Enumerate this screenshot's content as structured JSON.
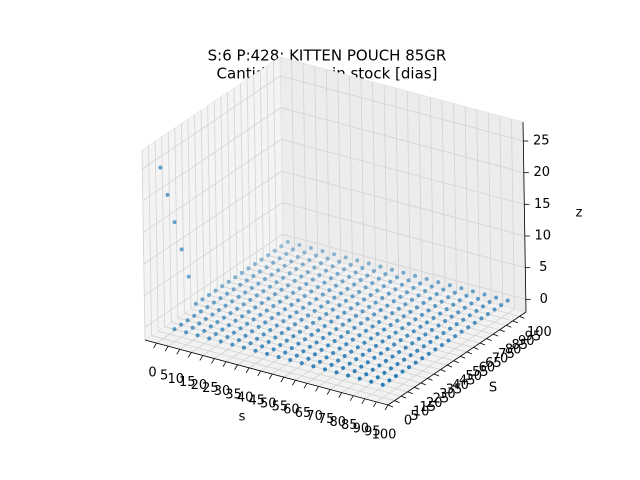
{
  "chart_data": {
    "type": "scatter3d",
    "title": "S:6 P:428: KITTEN POUCH 85GR",
    "subtitle": "Cantidad dias sin stock [dias]",
    "xlabel": "s",
    "ylabel": "S",
    "zlabel": "z",
    "color": "#1f77b4",
    "x": [
      0,
      5,
      10,
      15,
      20,
      25,
      30,
      35,
      40,
      45,
      50,
      55,
      60,
      65,
      70,
      75,
      80,
      85,
      90,
      95
    ],
    "y": [
      5,
      10,
      15,
      20,
      25,
      30,
      35,
      40,
      45,
      50,
      55,
      60,
      65,
      70,
      75,
      80,
      85,
      90,
      95,
      100
    ],
    "z": [
      [
        25,
        0,
        0,
        0,
        0,
        0,
        0,
        0,
        0,
        0,
        0,
        0,
        0,
        0,
        0,
        0,
        0,
        0,
        0,
        0
      ],
      [
        20,
        0,
        0,
        0,
        0,
        0,
        0,
        0,
        0,
        0,
        0,
        0,
        0,
        0,
        0,
        0,
        0,
        0,
        0,
        0
      ],
      [
        15,
        0,
        0,
        0,
        0,
        0,
        0,
        0,
        0,
        0,
        0,
        0,
        0,
        0,
        0,
        0,
        0,
        0,
        0,
        0
      ],
      [
        10,
        0,
        0,
        0,
        0,
        0,
        0,
        0,
        0,
        0,
        0,
        0,
        0,
        0,
        0,
        0,
        0,
        0,
        0,
        0
      ],
      [
        5,
        0,
        0,
        0,
        0,
        0,
        0,
        0,
        0,
        0,
        0,
        0,
        0,
        0,
        0,
        0,
        0,
        0,
        0,
        0
      ],
      [
        0,
        0,
        0,
        0,
        0,
        0,
        0,
        0,
        0,
        0,
        0,
        0,
        0,
        0,
        0,
        0,
        0,
        0,
        0,
        0
      ],
      [
        0,
        0,
        0,
        0,
        0,
        0,
        0,
        0,
        0,
        0,
        0,
        0,
        0,
        0,
        0,
        0,
        0,
        0,
        0,
        0
      ],
      [
        0,
        0,
        0,
        0,
        0,
        0,
        0,
        0,
        0,
        0,
        0,
        0,
        0,
        0,
        0,
        0,
        0,
        0,
        0,
        0
      ],
      [
        0,
        0,
        0,
        0,
        0,
        0,
        0,
        0,
        0,
        0,
        0,
        0,
        0,
        0,
        0,
        0,
        0,
        0,
        0,
        0
      ],
      [
        0,
        0,
        0,
        0,
        0,
        0,
        0,
        0,
        0,
        0,
        0,
        0,
        0,
        0,
        0,
        0,
        0,
        0,
        0,
        0
      ],
      [
        0,
        0,
        0,
        0,
        0,
        0,
        0,
        0,
        0,
        0,
        0,
        0,
        0,
        0,
        0,
        0,
        0,
        0,
        0,
        0
      ],
      [
        0,
        0,
        0,
        0,
        0,
        0,
        0,
        0,
        0,
        0,
        0,
        0,
        0,
        0,
        0,
        0,
        0,
        0,
        0,
        0
      ],
      [
        0,
        0,
        0,
        0,
        0,
        0,
        0,
        0,
        0,
        0,
        0,
        0,
        0,
        0,
        0,
        0,
        0,
        0,
        0,
        0
      ],
      [
        0,
        0,
        0,
        0,
        0,
        0,
        0,
        0,
        0,
        0,
        0,
        0,
        0,
        0,
        0,
        0,
        0,
        0,
        0,
        0
      ],
      [
        0,
        0,
        0,
        0,
        0,
        0,
        0,
        0,
        0,
        0,
        0,
        0,
        0,
        0,
        0,
        0,
        0,
        0,
        0,
        0
      ],
      [
        0,
        0,
        0,
        0,
        0,
        0,
        0,
        0,
        0,
        0,
        0,
        0,
        0,
        0,
        0,
        0,
        0,
        0,
        0,
        0
      ],
      [
        0,
        0,
        0,
        0,
        0,
        0,
        0,
        0,
        0,
        0,
        0,
        0,
        0,
        0,
        0,
        0,
        0,
        0,
        0,
        0
      ],
      [
        0,
        0,
        0,
        0,
        0,
        0,
        0,
        0,
        0,
        0,
        0,
        0,
        0,
        0,
        0,
        0,
        0,
        0,
        0,
        0
      ],
      [
        0,
        0,
        0,
        0,
        0,
        0,
        0,
        0,
        0,
        0,
        0,
        0,
        0,
        0,
        0,
        0,
        0,
        0,
        0,
        0
      ],
      [
        0,
        0,
        0,
        0,
        0,
        0,
        0,
        0,
        0,
        0,
        0,
        0,
        0,
        0,
        0,
        0,
        0,
        0,
        0,
        0
      ]
    ],
    "xlim": [
      -5,
      100
    ],
    "ylim": [
      0,
      105
    ],
    "zlim": [
      -2,
      28
    ],
    "xticks": [
      0,
      5,
      10,
      15,
      20,
      25,
      30,
      35,
      40,
      45,
      50,
      55,
      60,
      65,
      70,
      75,
      80,
      85,
      90,
      95,
      100
    ],
    "yticks": [
      0,
      5,
      10,
      15,
      20,
      25,
      30,
      35,
      40,
      45,
      50,
      55,
      60,
      65,
      70,
      75,
      80,
      85,
      90,
      95,
      100
    ],
    "zticks": [
      0,
      5,
      10,
      15,
      20,
      25
    ],
    "grid": true
  }
}
